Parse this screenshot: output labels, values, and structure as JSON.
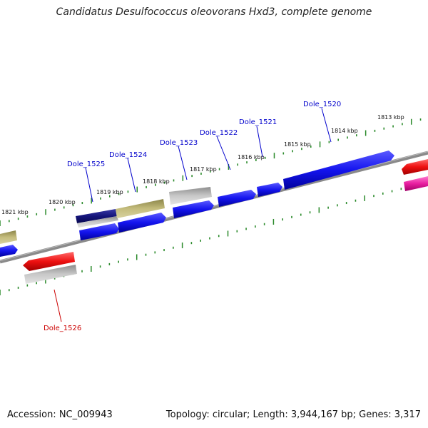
{
  "title": "Candidatus Desulfococcus oleovorans Hxd3, complete genome",
  "footer": {
    "accession": "Accession: NC_009943",
    "topology": "Topology: circular; Length: 3,944,167 bp; Genes: 3,317"
  },
  "kbp_labels": [
    "1813 kbp",
    "1814 kbp",
    "1815 kbp",
    "1816 kbp",
    "1817 kbp",
    "1818 kbp",
    "1819 kbp",
    "1820 kbp",
    "1821 kbp"
  ],
  "gene_labels": [
    {
      "text": "Dole_1520",
      "color": "#0000cc"
    },
    {
      "text": "Dole_1521",
      "color": "#0000cc"
    },
    {
      "text": "Dole_1522",
      "color": "#0000cc"
    },
    {
      "text": "Dole_1523",
      "color": "#0000cc"
    },
    {
      "text": "Dole_1524",
      "color": "#0000cc"
    },
    {
      "text": "Dole_1525",
      "color": "#0000cc"
    },
    {
      "text": "Dole_1526",
      "color": "#cc0000"
    }
  ],
  "colors": {
    "cds_blue": "#1a1aee",
    "cds_navy": "#141480",
    "cds_olive": "#b8b070",
    "cds_gray": "#bcbcbc",
    "cds_red": "#ee1a1a",
    "cds_pink": "#ee3aa8",
    "backbone": "#8a8a8a",
    "ticks": "#2a8a2a"
  }
}
